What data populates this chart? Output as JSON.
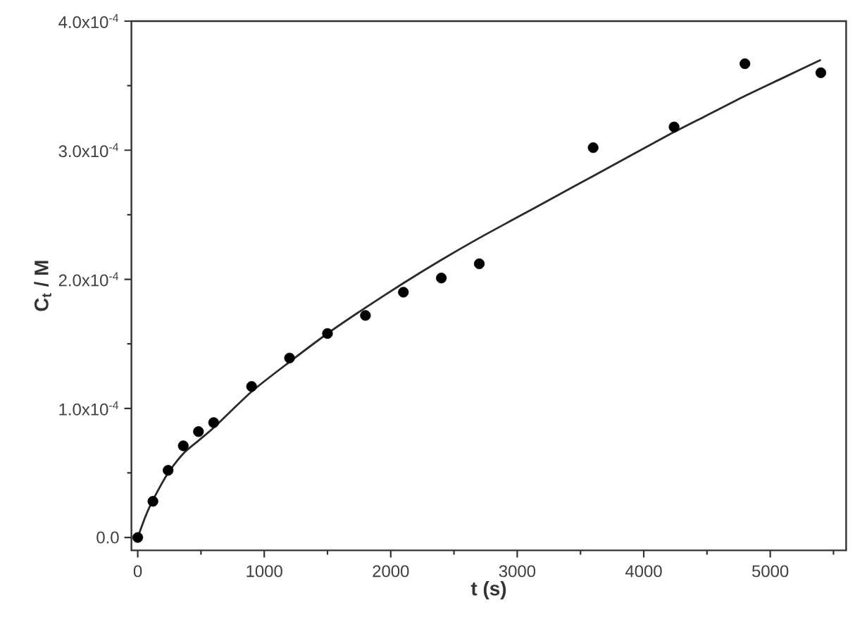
{
  "chart_data": {
    "type": "scatter",
    "xlabel": "t (s)",
    "ylabel": "C$_{t}$ / M",
    "xlim": [
      -50,
      5600
    ],
    "ylim": [
      -1e-05,
      0.0004
    ],
    "xticks": [
      0,
      {
        "value": 500,
        "label": null
      },
      1000,
      {
        "value": 1500,
        "label": null
      },
      2000,
      {
        "value": 2500,
        "label": null
      },
      3000,
      {
        "value": 3500,
        "label": null
      },
      4000,
      {
        "value": 4500,
        "label": null
      },
      5000,
      {
        "value": 5500,
        "label": null
      }
    ],
    "yticks": [
      {
        "value": 0,
        "label": "0.0"
      },
      {
        "value": 5e-05,
        "label": null
      },
      {
        "value": 0.0001,
        "label": "1.0x10$^{-4}$"
      },
      {
        "value": 0.00015,
        "label": null
      },
      {
        "value": 0.0002,
        "label": "2.0x10$^{-4}$"
      },
      {
        "value": 0.00025,
        "label": null
      },
      {
        "value": 0.0003,
        "label": "3.0x10$^{-4}$"
      },
      {
        "value": 0.00035,
        "label": null
      },
      {
        "value": 0.0004,
        "label": "4.0x10$^{-4}$"
      }
    ],
    "series": [
      {
        "marker": "circle",
        "color": "#000000",
        "x": [
          0,
          120,
          240,
          360,
          480,
          600,
          900,
          1200,
          1500,
          1800,
          2100,
          2400,
          2700,
          3600,
          4240,
          4800,
          5400
        ],
        "values": [
          0,
          2.8e-05,
          5.2e-05,
          7.1e-05,
          8.2e-05,
          8.9e-05,
          0.000117,
          0.000139,
          0.000158,
          0.000172,
          0.00019,
          0.000201,
          0.000212,
          0.000302,
          0.000318,
          0.000367,
          0.00036
        ]
      },
      {
        "type": "line",
        "line_style": "solid",
        "color": "#2a2a2a",
        "x": [
          0,
          60,
          120,
          240,
          360,
          480,
          600,
          900,
          1200,
          1500,
          1800,
          2100,
          2400,
          2700,
          3000,
          3300,
          3600,
          3900,
          4200,
          4500,
          4800,
          5100,
          5400
        ],
        "values": [
          0,
          1.6e-05,
          2.9e-05,
          5e-05,
          6.5e-05,
          7.5e-05,
          8.5e-05,
          0.000113,
          0.000136,
          0.000158,
          0.000178,
          0.000197,
          0.000215,
          0.000232,
          0.000248,
          0.000264,
          0.00028,
          0.000296,
          0.000312,
          0.000327,
          0.000342,
          0.000356,
          0.00037
        ]
      }
    ]
  }
}
